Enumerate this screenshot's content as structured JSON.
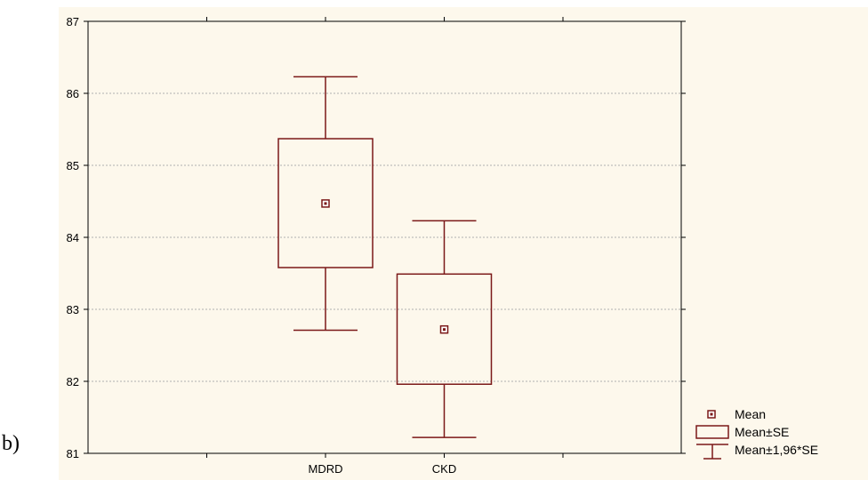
{
  "panel_label": "b)",
  "chart_data": {
    "type": "boxplot",
    "title": "",
    "xlabel": "",
    "ylabel": "",
    "ylim": [
      81,
      87
    ],
    "yticks": [
      81,
      82,
      83,
      84,
      85,
      86,
      87
    ],
    "grid": true,
    "categories": [
      "MDRD",
      "CKD"
    ],
    "boxes": [
      {
        "category": "MDRD",
        "mean": 84.47,
        "se_low": 83.58,
        "se_high": 85.37,
        "ci_low": 82.71,
        "ci_high": 86.23
      },
      {
        "category": "CKD",
        "mean": 82.72,
        "se_low": 81.96,
        "se_high": 83.49,
        "ci_low": 81.22,
        "ci_high": 84.23
      }
    ],
    "legend_position": "bottom-right",
    "legend": [
      "Mean",
      "Mean±SE",
      "Mean±1,96*SE"
    ],
    "colors": {
      "box": "#7b1818",
      "grid": "#b0b0b0"
    }
  }
}
